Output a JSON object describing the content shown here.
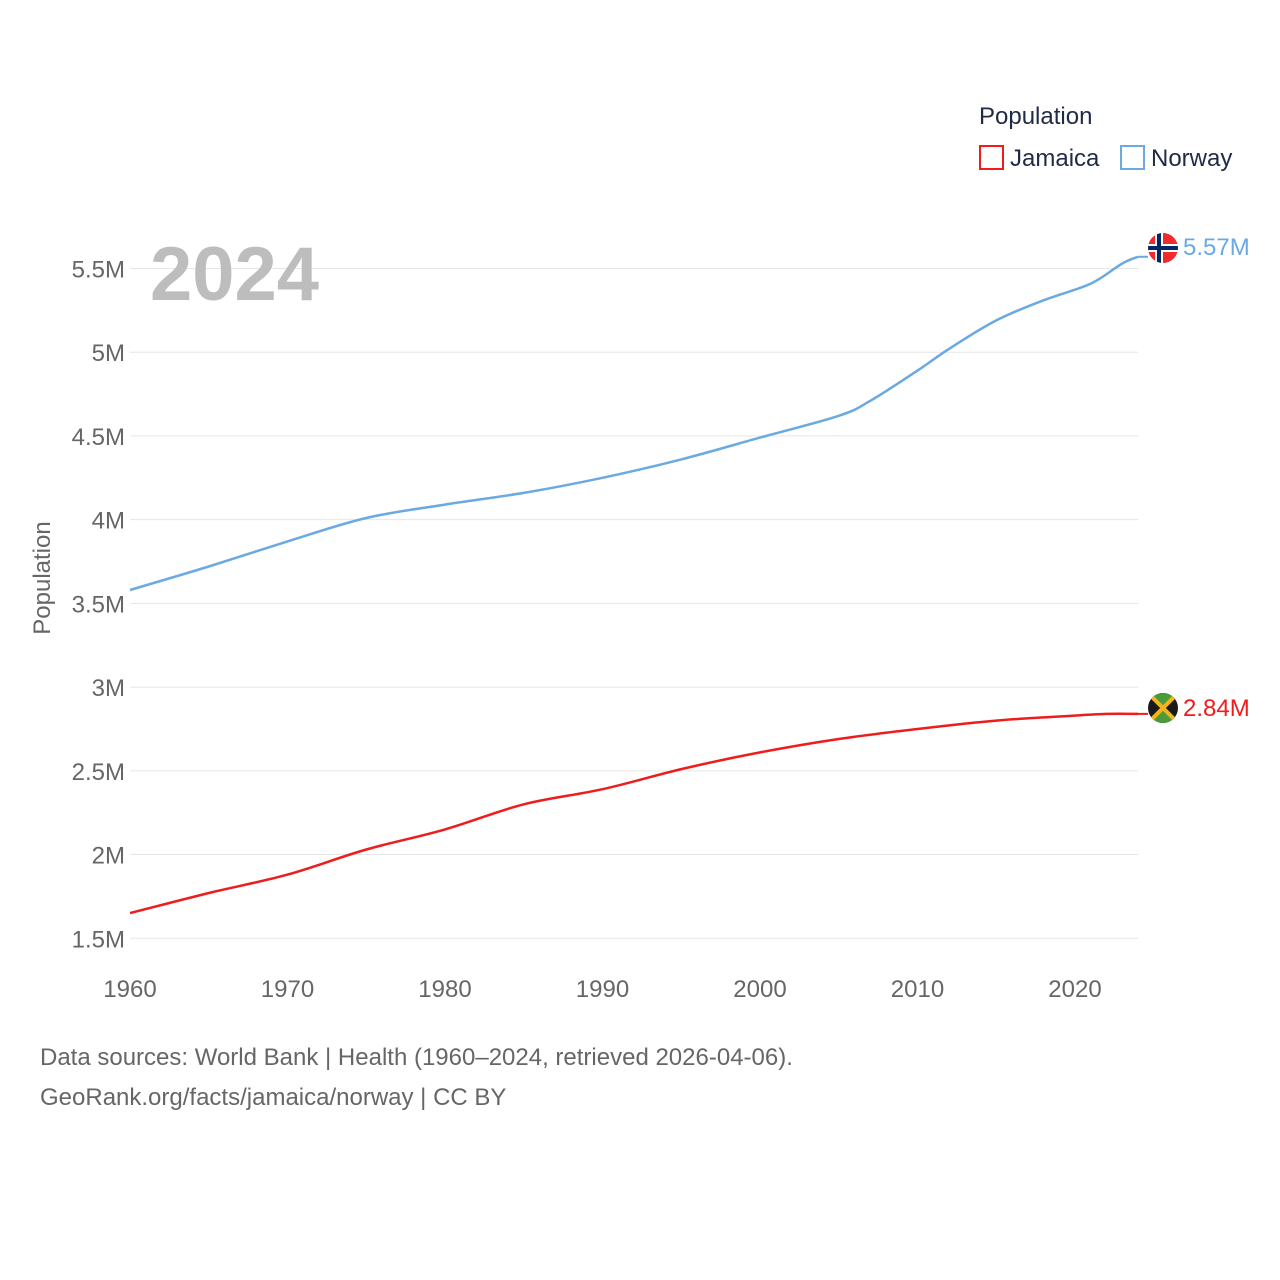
{
  "chart_data": {
    "type": "line",
    "ylabel": "Population",
    "xlabel": "",
    "current_year_label": "2024",
    "legend_title": "Population",
    "xlim": [
      1960,
      2024
    ],
    "ylim": [
      1.4,
      5.7
    ],
    "x_ticks": [
      {
        "value": 1960,
        "label": "1960"
      },
      {
        "value": 1970,
        "label": "1970"
      },
      {
        "value": 1980,
        "label": "1980"
      },
      {
        "value": 1990,
        "label": "1990"
      },
      {
        "value": 2000,
        "label": "2000"
      },
      {
        "value": 2010,
        "label": "2010"
      },
      {
        "value": 2020,
        "label": "2020"
      }
    ],
    "y_ticks": [
      {
        "value": 1.5,
        "label": "1.5M"
      },
      {
        "value": 2.0,
        "label": "2M"
      },
      {
        "value": 2.5,
        "label": "2.5M"
      },
      {
        "value": 3.0,
        "label": "3M"
      },
      {
        "value": 3.5,
        "label": "3.5M"
      },
      {
        "value": 4.0,
        "label": "4M"
      },
      {
        "value": 4.5,
        "label": "4.5M"
      },
      {
        "value": 5.0,
        "label": "5M"
      },
      {
        "value": 5.5,
        "label": "5.5M"
      }
    ],
    "series": [
      {
        "name": "Jamaica",
        "color": "#ee1c1c",
        "end_label": "2.84M",
        "flag_icon": "jamaica-flag-icon",
        "x": [
          1960,
          1965,
          1970,
          1975,
          1980,
          1985,
          1990,
          1995,
          2000,
          2005,
          2010,
          2015,
          2020,
          2022,
          2024
        ],
        "values": [
          1.65,
          1.77,
          1.88,
          2.03,
          2.15,
          2.3,
          2.39,
          2.51,
          2.61,
          2.69,
          2.75,
          2.8,
          2.83,
          2.84,
          2.84
        ]
      },
      {
        "name": "Norway",
        "color": "#6aa9e2",
        "end_label": "5.57M",
        "flag_icon": "norway-flag-icon",
        "x": [
          1960,
          1965,
          1970,
          1975,
          1980,
          1985,
          1990,
          1995,
          2000,
          2005,
          2007,
          2010,
          2012,
          2015,
          2018,
          2021,
          2023,
          2024
        ],
        "values": [
          3.58,
          3.72,
          3.87,
          4.01,
          4.09,
          4.16,
          4.25,
          4.36,
          4.49,
          4.62,
          4.71,
          4.89,
          5.02,
          5.19,
          5.31,
          5.41,
          5.53,
          5.57
        ]
      }
    ]
  },
  "footer": {
    "line1": "Data sources: World Bank | Health (1960–2024, retrieved 2026-04-06).",
    "line2": "GeoRank.org/facts/jamaica/norway | CC BY"
  }
}
